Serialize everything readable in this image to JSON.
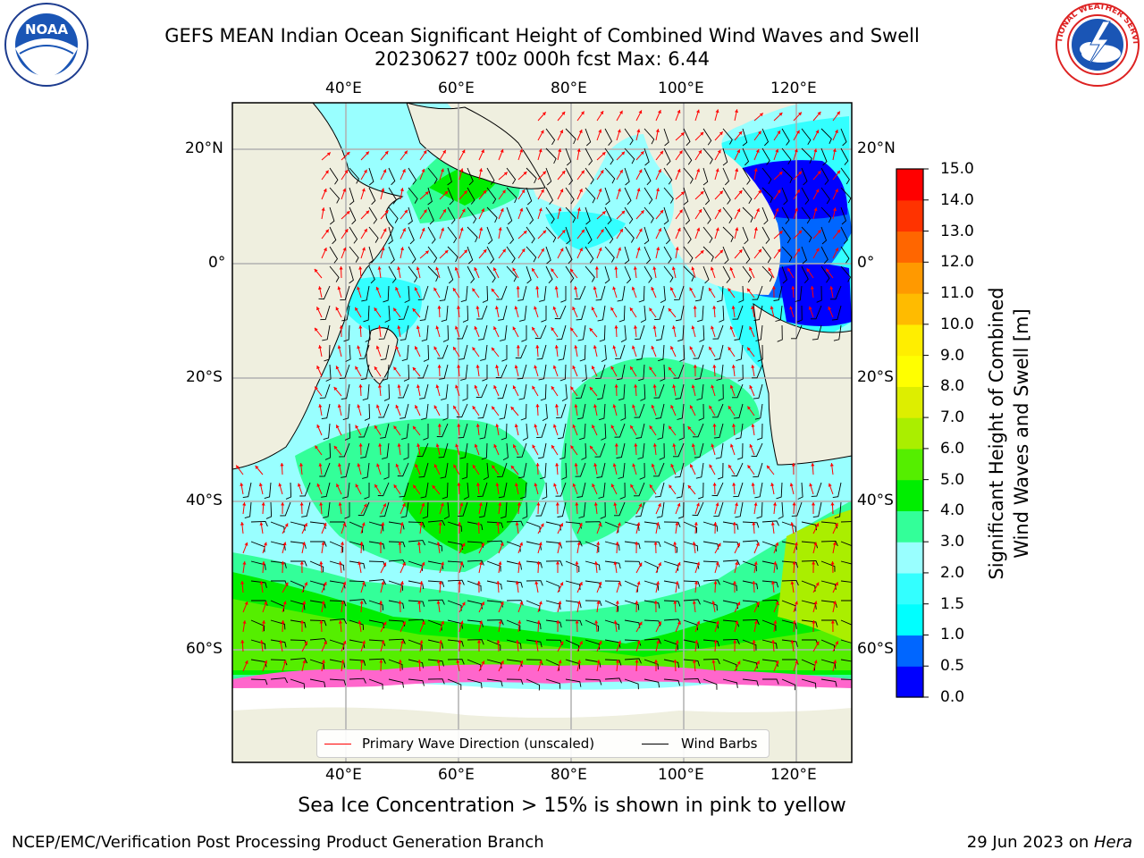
{
  "header": {
    "title_line1": "GEFS MEAN Indian Ocean Significant Height of Combined Wind Waves and Swell",
    "title_line2": "20230627 t00z 000h fcst   Max: 6.44"
  },
  "logos": {
    "noaa_text": "NOAA",
    "noaa_ring_text": "NATIONAL OCEANIC AND ATMOSPHERIC ADMINISTRATION · U.S. DEPARTMENT OF COMMERCE",
    "nws_ring_text": "NATIONAL WEATHER SERVICE"
  },
  "axes": {
    "lon_ticks": [
      "40°E",
      "60°E",
      "80°E",
      "100°E",
      "120°E"
    ],
    "lat_ticks_left": [
      "20°N",
      "0°",
      "20°S",
      "40°S",
      "60°S"
    ],
    "lat_ticks_right": [
      "20°N",
      "0°",
      "20°S",
      "40°S",
      "60°S"
    ]
  },
  "colorbar": {
    "title_line1": "Significant Height of Combined",
    "title_line2": "Wind Waves and Swell [m]",
    "levels": [
      0.0,
      0.5,
      1.0,
      1.5,
      2.0,
      3.0,
      4.0,
      5.0,
      6.0,
      7.0,
      8.0,
      9.0,
      10.0,
      11.0,
      12.0,
      13.0,
      14.0,
      15.0
    ],
    "tick_labels": [
      "0.0",
      "0.5",
      "1.0",
      "1.5",
      "2.0",
      "3.0",
      "4.0",
      "5.0",
      "6.0",
      "7.0",
      "8.0",
      "9.0",
      "10.0",
      "11.0",
      "12.0",
      "13.0",
      "14.0",
      "15.0"
    ],
    "colors": [
      "#0000ff",
      "#0066ff",
      "#00ffff",
      "#33ffff",
      "#99ffff",
      "#33ff99",
      "#00ee00",
      "#55ee00",
      "#aaee00",
      "#ddee00",
      "#ffff00",
      "#ffee00",
      "#ffbb00",
      "#ff9900",
      "#ff6600",
      "#ff3300",
      "#ff0000"
    ]
  },
  "legend": {
    "wave_label": "Primary Wave Direction (unscaled)",
    "wind_label": "Wind Barbs",
    "wave_color": "#ff0000",
    "wind_color": "#000000"
  },
  "caption": "Sea Ice Concentration > 15% is shown in pink to yellow",
  "footer": {
    "left": "NCEP/EMC/Verification Post Processing Product Generation Branch",
    "right_prefix": "29 Jun 2023 on ",
    "right_machine": "Hera"
  },
  "colors": {
    "land": "#efefdf",
    "ocean_low": "#99ffff",
    "ice": "#ffffff"
  }
}
